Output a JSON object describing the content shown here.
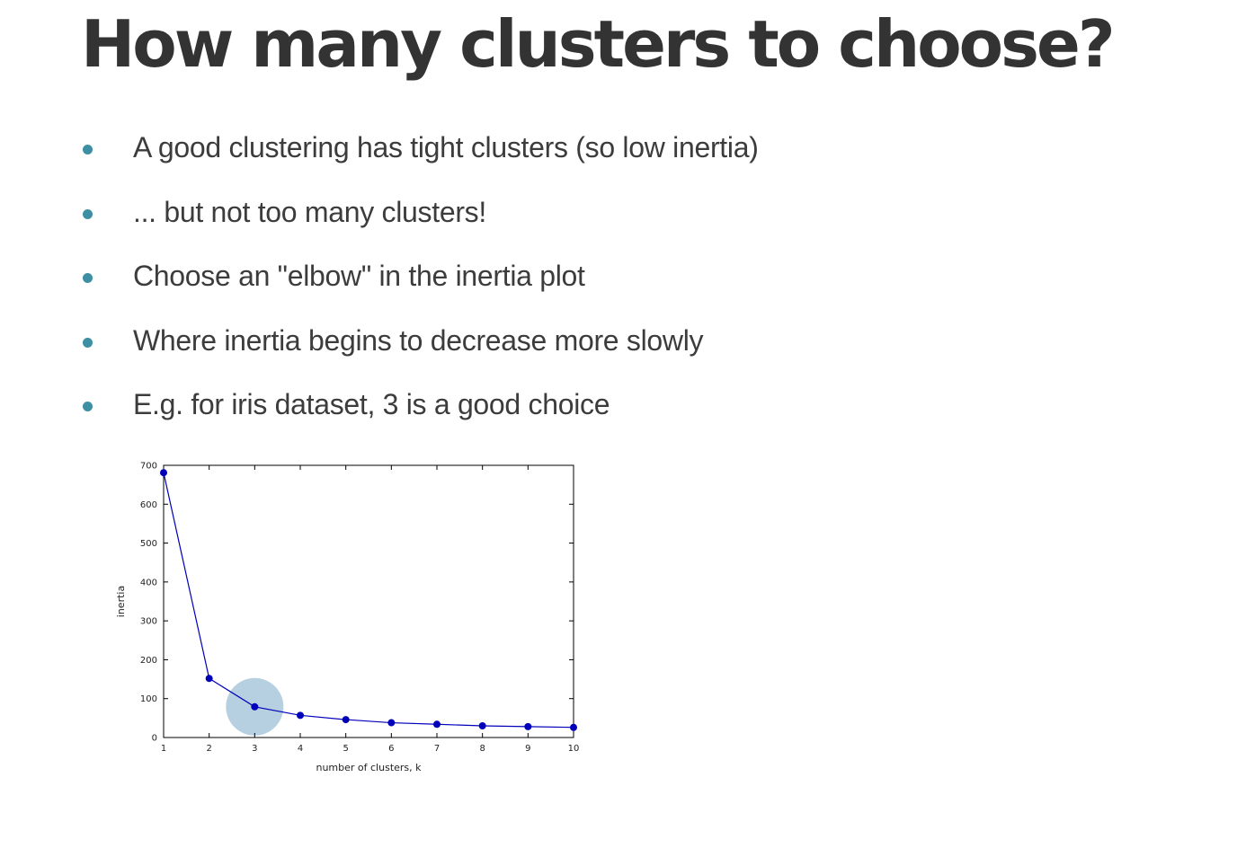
{
  "slide": {
    "title": "How many clusters to choose?",
    "bullets": [
      "A good clustering has tight clusters (so low inertia)",
      "... but not too many clusters!",
      "Choose an \"elbow\" in the inertia plot",
      "Where inertia begins to decrease more slowly",
      "E.g. for iris dataset, 3 is a good choice"
    ],
    "bullet_color": "#3e8fa3"
  },
  "chart_data": {
    "type": "line",
    "title": "",
    "xlabel": "number of clusters, k",
    "ylabel": "inertia",
    "x": [
      1,
      2,
      3,
      4,
      5,
      6,
      7,
      8,
      9,
      10
    ],
    "series": [
      {
        "values": [
          681,
          152,
          79,
          57,
          46,
          38,
          34,
          30,
          28,
          26
        ],
        "color": "#0000bb",
        "marker": "circle"
      }
    ],
    "xlim": [
      1,
      10
    ],
    "ylim": [
      0,
      700
    ],
    "xticks": [
      "1",
      "2",
      "3",
      "4",
      "5",
      "6",
      "7",
      "8",
      "9",
      "10"
    ],
    "yticks": [
      "0",
      "100",
      "200",
      "300",
      "400",
      "500",
      "600",
      "700"
    ],
    "highlight": {
      "x": 3,
      "y": 79,
      "color": "#a9c8dc"
    },
    "grid": false,
    "legend": "none"
  }
}
